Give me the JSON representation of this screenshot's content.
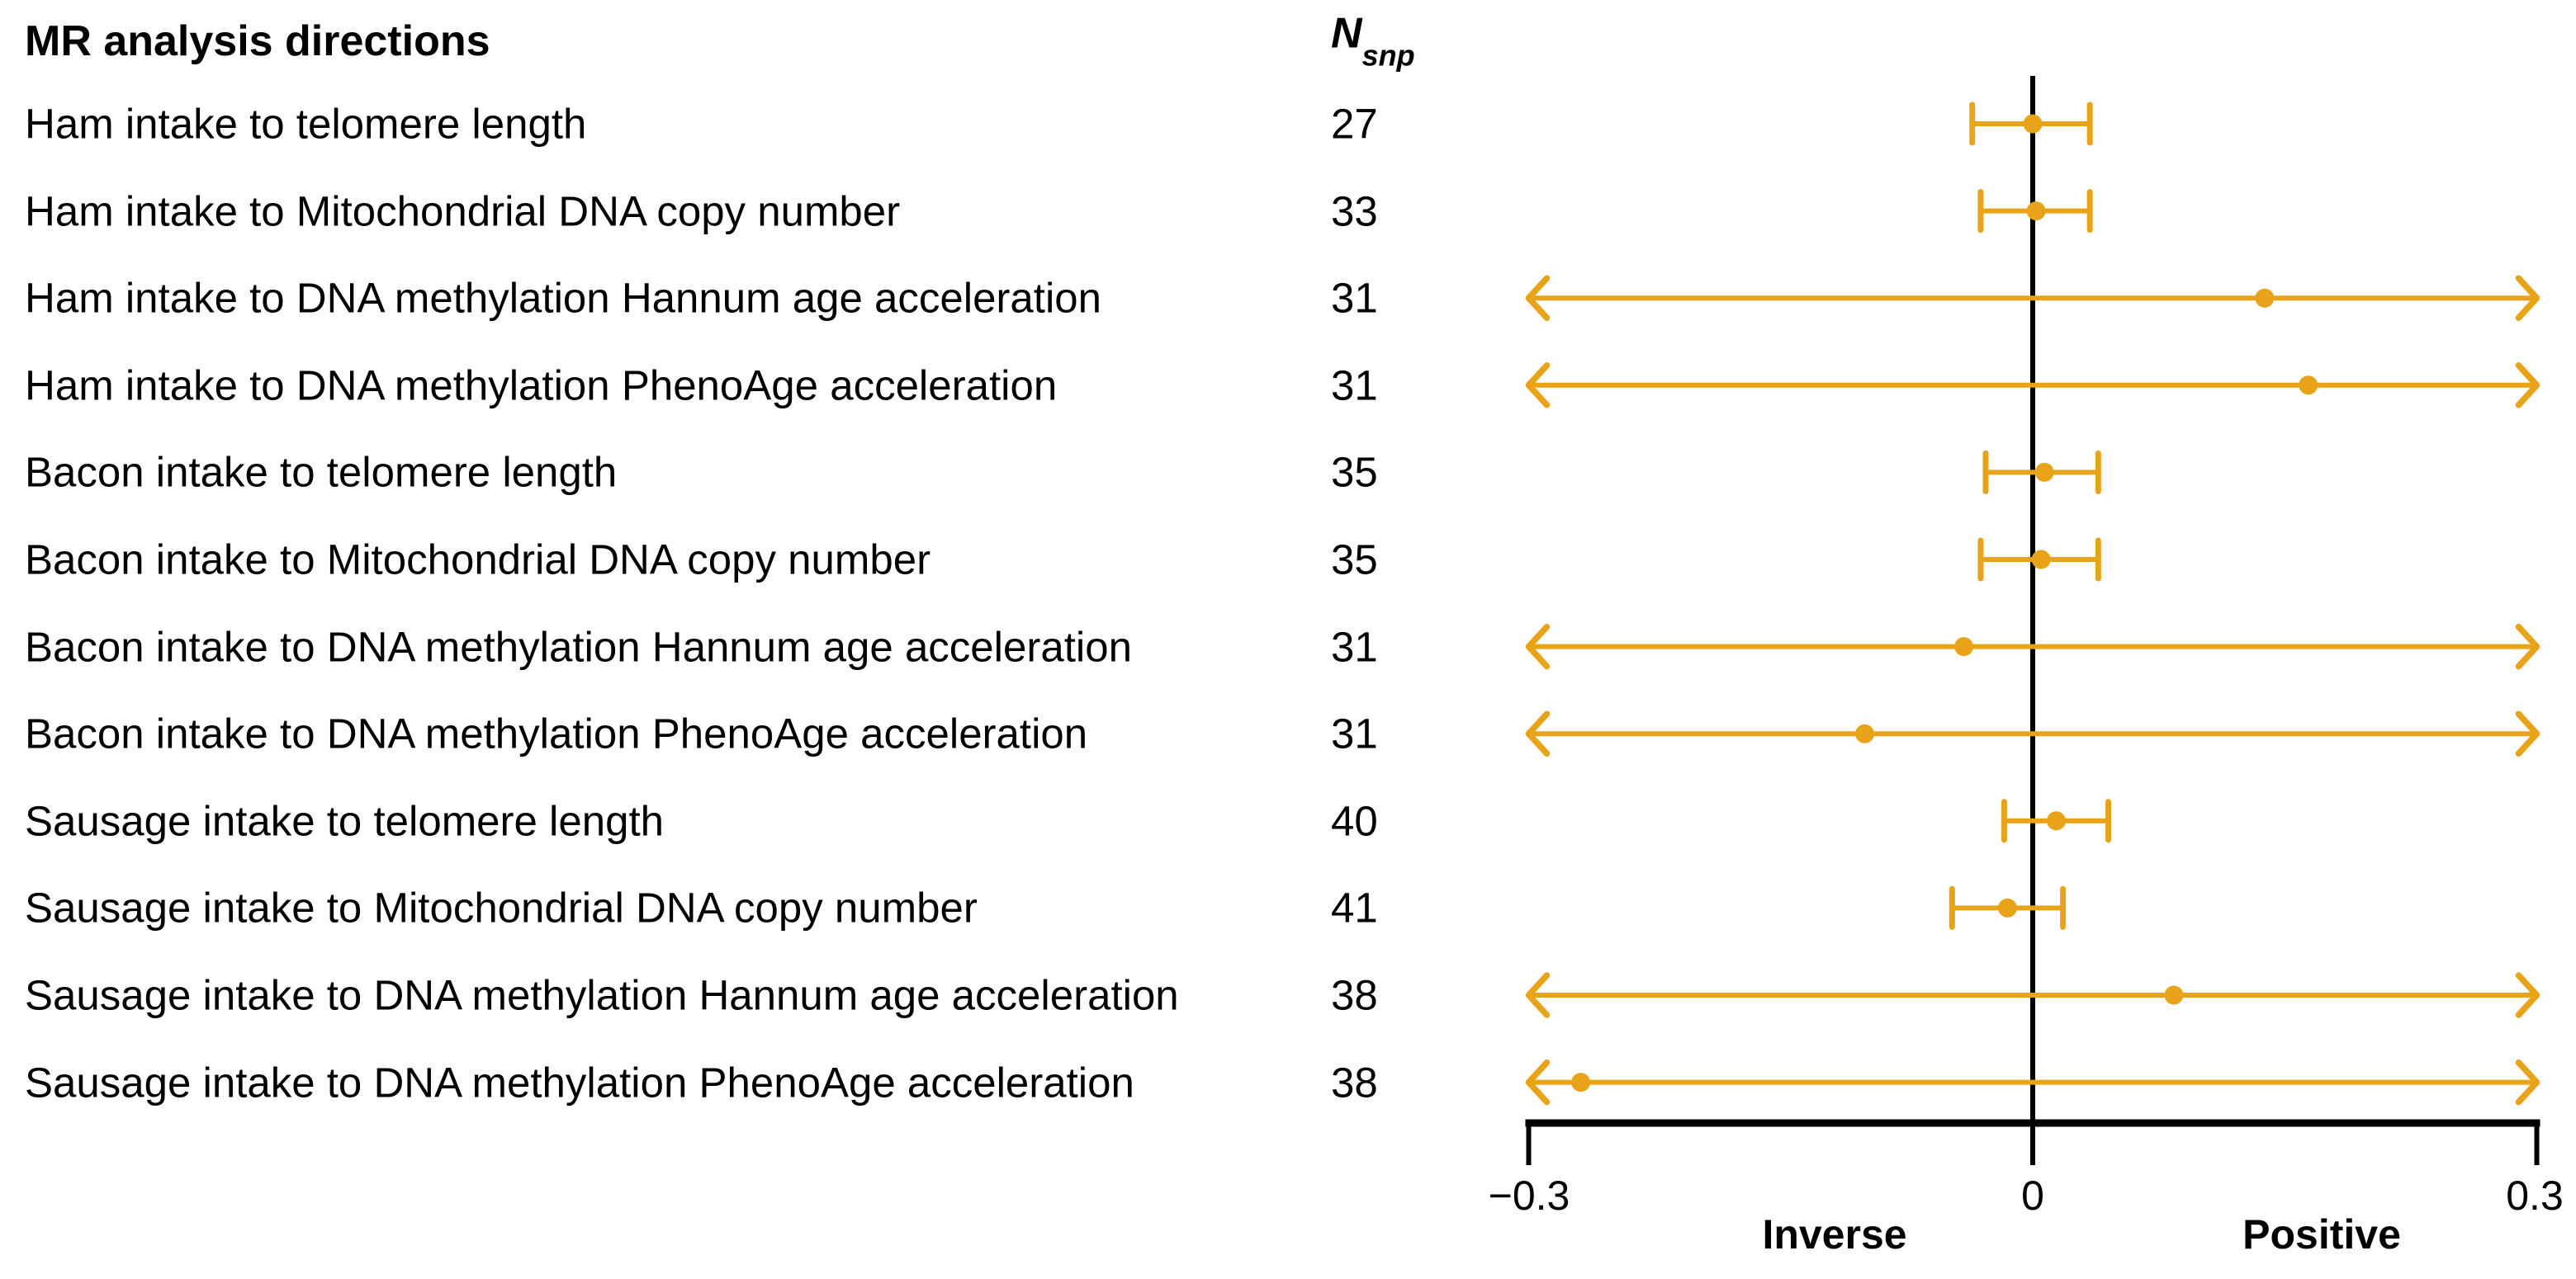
{
  "figure_title": "MR analysis directions",
  "nsnp_header": {
    "base": "N",
    "sub": "snp"
  },
  "x_axis": {
    "tick_labels": [
      "−0.3",
      "0",
      "0.3"
    ],
    "tick_values": [
      -0.3,
      0,
      0.3
    ],
    "direction_labels": {
      "left": "Inverse",
      "right": "Positive"
    }
  },
  "colors": {
    "marker": "#E8A318",
    "axis": "#000000",
    "text": "#000000",
    "background": "#FFFFFF"
  },
  "chart_data": {
    "type": "forest",
    "title": "MR analysis directions",
    "n_column_header": "N_snp",
    "xlim": [
      -0.3,
      0.3
    ],
    "x_ticks": [
      -0.3,
      0,
      0.3
    ],
    "x_tick_labels": [
      "−0.3",
      "0",
      "0.3"
    ],
    "x_direction_labels": {
      "negative": "Inverse",
      "positive": "Positive"
    },
    "grid": false,
    "zero_reference_line": 0,
    "marker_color": "#E8A318",
    "rows": [
      {
        "label": "Ham intake to telomere length",
        "n_snp": 27,
        "estimate": 0.0,
        "ci_lower": -0.036,
        "ci_upper": 0.034,
        "ci_clipped": false
      },
      {
        "label": "Ham intake to Mitochondrial DNA copy number",
        "n_snp": 33,
        "estimate": 0.002,
        "ci_lower": -0.031,
        "ci_upper": 0.034,
        "ci_clipped": false
      },
      {
        "label": "Ham intake to DNA methylation Hannum age acceleration",
        "n_snp": 31,
        "estimate": 0.138,
        "ci_lower": -0.3,
        "ci_upper": 0.3,
        "ci_clipped": true
      },
      {
        "label": "Ham intake to DNA methylation PhenoAge acceleration",
        "n_snp": 31,
        "estimate": 0.164,
        "ci_lower": -0.3,
        "ci_upper": 0.3,
        "ci_clipped": true
      },
      {
        "label": "Bacon intake to telomere length",
        "n_snp": 35,
        "estimate": 0.007,
        "ci_lower": -0.028,
        "ci_upper": 0.039,
        "ci_clipped": false
      },
      {
        "label": "Bacon intake to Mitochondrial DNA copy number",
        "n_snp": 35,
        "estimate": 0.005,
        "ci_lower": -0.031,
        "ci_upper": 0.039,
        "ci_clipped": false
      },
      {
        "label": "Bacon intake to DNA methylation Hannum age acceleration",
        "n_snp": 31,
        "estimate": -0.041,
        "ci_lower": -0.3,
        "ci_upper": 0.3,
        "ci_clipped": true
      },
      {
        "label": "Bacon intake to DNA methylation PhenoAge acceleration",
        "n_snp": 31,
        "estimate": -0.1,
        "ci_lower": -0.3,
        "ci_upper": 0.3,
        "ci_clipped": true
      },
      {
        "label": "Sausage intake to telomere length",
        "n_snp": 40,
        "estimate": 0.014,
        "ci_lower": -0.017,
        "ci_upper": 0.045,
        "ci_clipped": false
      },
      {
        "label": "Sausage intake to Mitochondrial DNA copy number",
        "n_snp": 41,
        "estimate": -0.015,
        "ci_lower": -0.048,
        "ci_upper": 0.018,
        "ci_clipped": false
      },
      {
        "label": "Sausage intake to DNA methylation Hannum age acceleration",
        "n_snp": 38,
        "estimate": 0.084,
        "ci_lower": -0.3,
        "ci_upper": 0.3,
        "ci_clipped": true
      },
      {
        "label": "Sausage intake to DNA methylation PhenoAge acceleration",
        "n_snp": 38,
        "estimate": -0.269,
        "ci_lower": -0.3,
        "ci_upper": 0.3,
        "ci_clipped": true
      }
    ]
  }
}
